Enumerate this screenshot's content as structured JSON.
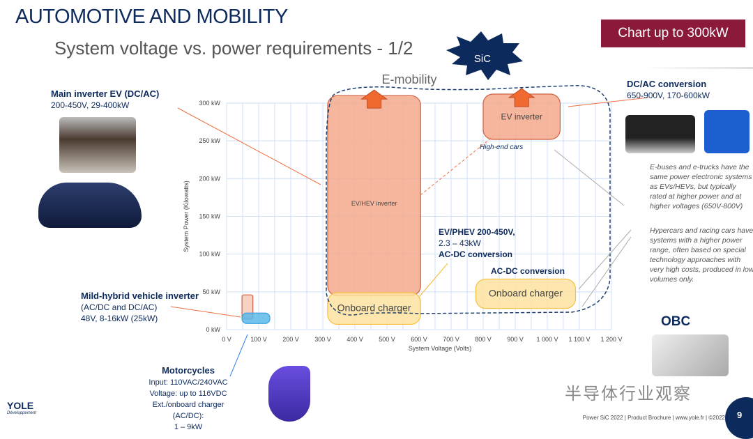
{
  "header": {
    "title": "AUTOMOTIVE AND MOBILITY",
    "subtitle": "System voltage vs. power requirements - 1/2",
    "badge": "Chart up to 300kW",
    "sic_label": "SiC"
  },
  "callouts": {
    "main_inverter": {
      "title": "Main inverter EV (DC/AC)",
      "detail": "200-450V, 29-400kW"
    },
    "mild_hybrid": {
      "title": "Mild-hybrid vehicle inverter",
      "line1": "(AC/DC  and DC/AC)",
      "line2": "48V, 8-16kW (25kW)"
    },
    "dcac": {
      "title": "DC/AC conversion",
      "detail": "650-900V, 170-600kW"
    },
    "ev_phev": {
      "line1": "EV/PHEV 200-450V,",
      "line2": "2.3 – 43kW",
      "line3": "AC-DC conversion"
    },
    "acdc": {
      "title": "AC-DC conversion"
    },
    "motorcycles": {
      "title": "Motorcycles",
      "input": "Input: 110VAC/240VAC",
      "voltage": "Voltage: up to 116VDC",
      "charger": "Ext./onboard charger (AC/DC):",
      "power": "1 – 9kW"
    },
    "note1": "E-buses and e-trucks have the same power electronic systems as EVs/HEVs, but typically rated at higher power and at higher voltages (650V-800V)",
    "note2": "Hypercars and racing cars have systems with a higher power range, often based on special technology approaches with very high costs, produced in low volumes only.",
    "obc": "OBC",
    "high_end": "High-end cars",
    "emobility": "E-mobility"
  },
  "footer": {
    "text": "Power SiC 2022 | Product Brochure | www.yole.fr | ©2022",
    "page": "9",
    "logo": "YOLE",
    "logo_sub": "Développement",
    "watermark": "半导体行业观察"
  },
  "chart_data": {
    "type": "area",
    "xlabel": "System Voltage (Volts)",
    "ylabel": "System Power  (Kilowatts)",
    "xlim": [
      0,
      1200
    ],
    "ylim": [
      0,
      300
    ],
    "xticks": [
      "0 V",
      "100 V",
      "200 V",
      "300 V",
      "400 V",
      "500 V",
      "600 V",
      "700 V",
      "800 V",
      "900 V",
      "1 000 V",
      "1 100 V",
      "1 200 V"
    ],
    "yticks": [
      "0 kW",
      "50 kW",
      "100 kW",
      "150 kW",
      "200 kW",
      "250 kW",
      "300 kW"
    ],
    "grid": true,
    "regions": [
      {
        "name": "EV/HEV inverter",
        "x": [
          315,
          605
        ],
        "y": [
          45,
          310
        ],
        "color": "#f5a98c",
        "arrow_up": true
      },
      {
        "name": "Onboard charger",
        "x": [
          315,
          605
        ],
        "y": [
          7,
          49
        ],
        "color": "#fde3a0"
      },
      {
        "name": "EV inverter",
        "x": [
          800,
          1040
        ],
        "y": [
          252,
          312
        ],
        "color": "#f5a98c",
        "arrow_up": true
      },
      {
        "name": "Onboard charger",
        "x": [
          777,
          1088
        ],
        "y": [
          28,
          67
        ],
        "color": "#fde3a0"
      },
      {
        "name": "",
        "x": [
          48,
          82
        ],
        "y": [
          14,
          46
        ],
        "color": "#f8c9b8"
      },
      {
        "name": "",
        "x": [
          48,
          135
        ],
        "y": [
          8,
          22
        ],
        "color": "#5bb8ea"
      }
    ]
  }
}
